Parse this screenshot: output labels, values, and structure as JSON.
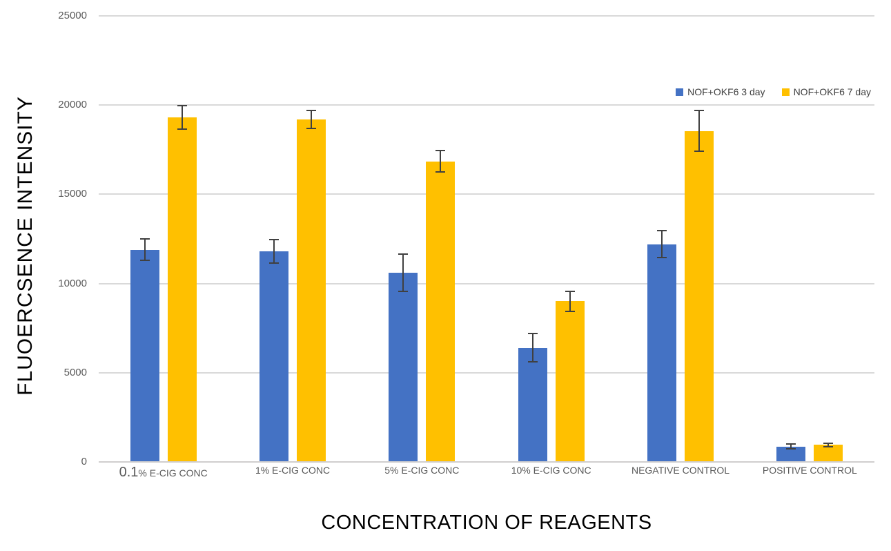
{
  "chart_data": {
    "type": "bar",
    "title": "",
    "xlabel": "CONCENTRATION OF REAGENTS",
    "ylabel": "FLUOERCSENCE INTENSITY",
    "categories": [
      "0.1% E-CIG CONC",
      "1% E-CIG CONC",
      "5% E-CIG CONC",
      "10% E-CIG CONC",
      "NEGATIVE CONTROL",
      "POSITIVE CONTROL"
    ],
    "category_emphasis": {
      "0": "0.1"
    },
    "series": [
      {
        "name": "NOF+OKF6 3 day",
        "color": "#4472C4",
        "values": [
          11900,
          11800,
          10600,
          6400,
          12200,
          870
        ],
        "errors": [
          600,
          650,
          1050,
          800,
          750,
          120
        ]
      },
      {
        "name": "NOF+OKF6 7 day",
        "color": "#FFC000",
        "values": [
          19300,
          19200,
          16850,
          9000,
          18550,
          950
        ],
        "errors": [
          650,
          500,
          600,
          550,
          1150,
          80
        ]
      }
    ],
    "ylim": [
      0,
      25000
    ],
    "yticks": [
      0,
      5000,
      10000,
      15000,
      20000,
      25000
    ],
    "grid": "horizontal",
    "legend_position": "top-right",
    "error_bars": true
  },
  "colors": {
    "gridline": "#D9D9D9",
    "baseline": "#D0CECE",
    "axis_text": "#595959",
    "legend_text": "#404040",
    "title_text": "#000000",
    "error_bar": "#404040",
    "background": "#FFFFFF"
  }
}
